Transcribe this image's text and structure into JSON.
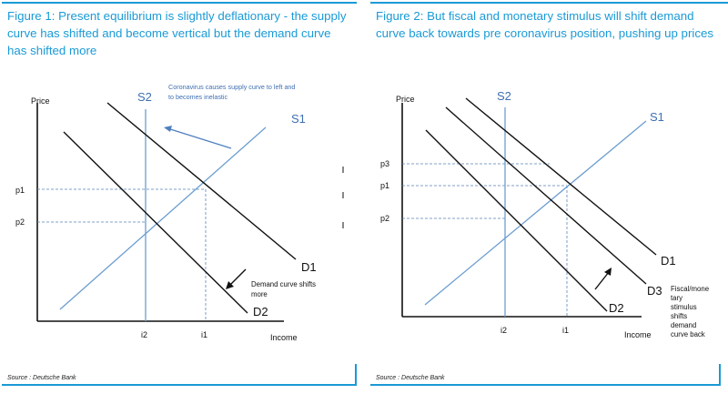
{
  "figure1": {
    "title": "Figure 1: Present equilibrium is slightly deflationary - the supply curve has shifted and become vertical but the demand curve has shifted more",
    "axis_y": "Price",
    "axis_x": "Income",
    "labels": {
      "s1": "S1",
      "s2": "S2",
      "d1": "D1",
      "d2": "D2",
      "p1": "p1",
      "p2": "p2",
      "i1": "i1",
      "i2": "i2"
    },
    "annotation_supply": [
      "Coronavirus causes supply curve to left and",
      "to becomes inelastic"
    ],
    "annotation_demand": [
      "Demand curve shifts",
      "more"
    ],
    "source": "Source : Deutsche Bank"
  },
  "figure2": {
    "title": "Figure 2: But fiscal and monetary stimulus will shift demand curve back towards pre coronavirus position, pushing up prices",
    "axis_y": "Price",
    "axis_x": "Income",
    "labels": {
      "s1": "S1",
      "s2": "S2",
      "d1": "D1",
      "d2": "D2",
      "d3": "D3",
      "p1": "p1",
      "p2": "p2",
      "p3": "p3",
      "i1": "i1",
      "i2": "i2"
    },
    "annotation_stimulus": [
      "Fiscal/mone",
      "tary",
      "stimulus",
      "shifts",
      "demand",
      "curve back"
    ],
    "source": "Source : Deutsche Bank"
  },
  "colors": {
    "accent": "#1a9ad6",
    "supply_line": "#6d9ed0",
    "demand_line": "#111111"
  }
}
